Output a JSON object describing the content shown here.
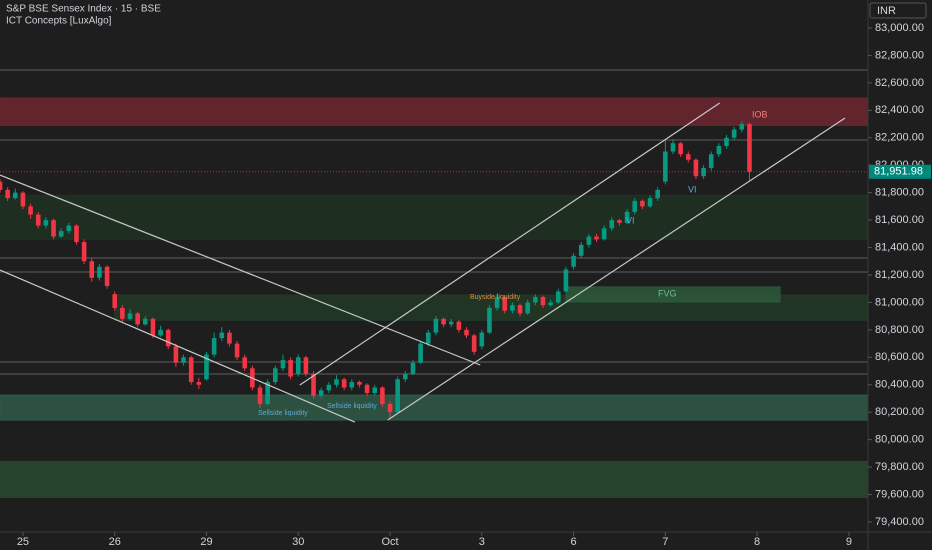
{
  "chart_data": {
    "type": "candlestick",
    "title": "S&P BSE Sensex Index · 15 · BSE",
    "subtitle": "ICT Concepts [LuxAlgo]",
    "currency": "INR",
    "up_color": "#089981",
    "down_color": "#f23645",
    "candles": [
      [
        81880,
        81900,
        81800,
        81820
      ],
      [
        81820,
        81840,
        81740,
        81760
      ],
      [
        81760,
        81830,
        81750,
        81800
      ],
      [
        81800,
        81810,
        81680,
        81700
      ],
      [
        81700,
        81720,
        81610,
        81640
      ],
      [
        81640,
        81660,
        81540,
        81560
      ],
      [
        81560,
        81620,
        81540,
        81600
      ],
      [
        81600,
        81610,
        81460,
        81480
      ],
      [
        81480,
        81540,
        81470,
        81520
      ],
      [
        81520,
        81580,
        81500,
        81560
      ],
      [
        81560,
        81570,
        81420,
        81440
      ],
      [
        81440,
        81460,
        81280,
        81300
      ],
      [
        81300,
        81320,
        81150,
        81180
      ],
      [
        81180,
        81280,
        81160,
        81260
      ],
      [
        81260,
        81270,
        81100,
        81120
      ],
      [
        81060,
        81080,
        80940,
        80960
      ],
      [
        80960,
        80980,
        80850,
        80880
      ],
      [
        80880,
        80950,
        80870,
        80920
      ],
      [
        80920,
        80930,
        80820,
        80840
      ],
      [
        80840,
        80900,
        80830,
        80880
      ],
      [
        80880,
        80890,
        80740,
        80760
      ],
      [
        80760,
        80830,
        80750,
        80800
      ],
      [
        80800,
        80810,
        80660,
        80680
      ],
      [
        80680,
        80700,
        80530,
        80560
      ],
      [
        80560,
        80620,
        80540,
        80600
      ],
      [
        80600,
        80610,
        80400,
        80420
      ],
      [
        80420,
        80450,
        80370,
        80400
      ],
      [
        80440,
        80640,
        80430,
        80620
      ],
      [
        80620,
        80780,
        80600,
        80740
      ],
      [
        80740,
        80820,
        80720,
        80780
      ],
      [
        80780,
        80800,
        80680,
        80700
      ],
      [
        80700,
        80720,
        80580,
        80600
      ],
      [
        80600,
        80620,
        80500,
        80520
      ],
      [
        80520,
        80540,
        80360,
        80380
      ],
      [
        80380,
        80400,
        80230,
        80260
      ],
      [
        80260,
        80440,
        80250,
        80420
      ],
      [
        80420,
        80540,
        80400,
        80520
      ],
      [
        80520,
        80620,
        80500,
        80580
      ],
      [
        80580,
        80600,
        80440,
        80460
      ],
      [
        80480,
        80620,
        80460,
        80600
      ],
      [
        80600,
        80610,
        80460,
        80480
      ],
      [
        80480,
        80500,
        80300,
        80320
      ],
      [
        80320,
        80380,
        80300,
        80360
      ],
      [
        80360,
        80420,
        80340,
        80400
      ],
      [
        80400,
        80470,
        80380,
        80440
      ],
      [
        80440,
        80450,
        80360,
        80380
      ],
      [
        80380,
        80440,
        80360,
        80420
      ],
      [
        80420,
        80430,
        80380,
        80400
      ],
      [
        80400,
        80410,
        80320,
        80340
      ],
      [
        80340,
        80400,
        80320,
        80380
      ],
      [
        80380,
        80390,
        80240,
        80260
      ],
      [
        80260,
        80280,
        80160,
        80200
      ],
      [
        80200,
        80460,
        80190,
        80440
      ],
      [
        80440,
        80500,
        80420,
        80480
      ],
      [
        80480,
        80580,
        80470,
        80560
      ],
      [
        80560,
        80720,
        80550,
        80700
      ],
      [
        80700,
        80800,
        80680,
        80780
      ],
      [
        80780,
        80900,
        80760,
        80880
      ],
      [
        80880,
        80890,
        80820,
        80840
      ],
      [
        80840,
        80880,
        80820,
        80860
      ],
      [
        80860,
        80870,
        80780,
        80800
      ],
      [
        80800,
        80820,
        80740,
        80760
      ],
      [
        80760,
        80770,
        80620,
        80640
      ],
      [
        80680,
        80800,
        80660,
        80780
      ],
      [
        80780,
        80980,
        80770,
        80960
      ],
      [
        80960,
        81060,
        80940,
        81040
      ],
      [
        81040,
        81050,
        80920,
        80940
      ],
      [
        80940,
        81000,
        80920,
        80980
      ],
      [
        80980,
        80990,
        80900,
        80920
      ],
      [
        80920,
        81020,
        80910,
        81000
      ],
      [
        81000,
        81060,
        80980,
        81040
      ],
      [
        81040,
        81050,
        80960,
        80980
      ],
      [
        80980,
        81020,
        80970,
        81000
      ],
      [
        81000,
        81100,
        80990,
        81080
      ],
      [
        81080,
        81260,
        81070,
        81240
      ],
      [
        81260,
        81360,
        81240,
        81340
      ],
      [
        81340,
        81440,
        81320,
        81420
      ],
      [
        81420,
        81500,
        81400,
        81480
      ],
      [
        81480,
        81500,
        81440,
        81460
      ],
      [
        81460,
        81560,
        81450,
        81540
      ],
      [
        81540,
        81620,
        81520,
        81600
      ],
      [
        81600,
        81610,
        81560,
        81580
      ],
      [
        81580,
        81680,
        81570,
        81660
      ],
      [
        81660,
        81760,
        81640,
        81740
      ],
      [
        81740,
        81750,
        81680,
        81700
      ],
      [
        81700,
        81780,
        81690,
        81760
      ],
      [
        81760,
        81840,
        81740,
        81820
      ],
      [
        81880,
        82180,
        81860,
        82100
      ],
      [
        82100,
        82190,
        82080,
        82160
      ],
      [
        82160,
        82170,
        82060,
        82080
      ],
      [
        82080,
        82100,
        82020,
        82040
      ],
      [
        82040,
        82050,
        81900,
        81920
      ],
      [
        81920,
        82000,
        81900,
        81980
      ],
      [
        81980,
        82100,
        81960,
        82080
      ],
      [
        82080,
        82160,
        82060,
        82140
      ],
      [
        82140,
        82220,
        82120,
        82200
      ],
      [
        82200,
        82280,
        82180,
        82260
      ],
      [
        82260,
        82320,
        82240,
        82300
      ],
      [
        82300,
        82310,
        81880,
        81951.98
      ]
    ],
    "last_price": {
      "value": 81951.98,
      "label": "81,951.98"
    },
    "xlim": [
      0,
      113.5
    ],
    "xticks": [
      {
        "value": 3,
        "label": "25"
      },
      {
        "value": 15,
        "label": "26"
      },
      {
        "value": 27,
        "label": "29"
      },
      {
        "value": 39,
        "label": "30"
      },
      {
        "value": 51,
        "label": "Oct"
      },
      {
        "value": 63,
        "label": "3"
      },
      {
        "value": 75,
        "label": "6"
      },
      {
        "value": 87,
        "label": "7"
      },
      {
        "value": 99,
        "label": "8"
      },
      {
        "value": 111,
        "label": "9"
      }
    ],
    "ylim": [
      79327,
      83204
    ],
    "yticks": [
      {
        "value": 79400,
        "label": "79,400.00"
      },
      {
        "value": 79600,
        "label": "79,600.00"
      },
      {
        "value": 79800,
        "label": "79,800.00"
      },
      {
        "value": 80000,
        "label": "80,000.00"
      },
      {
        "value": 80200,
        "label": "80,200.00"
      },
      {
        "value": 80400,
        "label": "80,400.00"
      },
      {
        "value": 80600,
        "label": "80,600.00"
      },
      {
        "value": 80800,
        "label": "80,800.00"
      },
      {
        "value": 81000,
        "label": "81,000.00"
      },
      {
        "value": 81200,
        "label": "81,200.00"
      },
      {
        "value": 81400,
        "label": "81,400.00"
      },
      {
        "value": 81600,
        "label": "81,600.00"
      },
      {
        "value": 81800,
        "label": "81,800.00"
      },
      {
        "value": 82000,
        "label": "82,000.00"
      },
      {
        "value": 82200,
        "label": "82,200.00"
      },
      {
        "value": 82400,
        "label": "82,400.00"
      },
      {
        "value": 82600,
        "label": "82,600.00"
      },
      {
        "value": 82800,
        "label": "82,800.00"
      },
      {
        "value": 83000,
        "label": "83,000.00"
      }
    ],
    "zones": [
      {
        "low": 82290,
        "high": 82490,
        "xrange": [
          0,
          113.5
        ],
        "color": "#6e2630"
      },
      {
        "low": 81460,
        "high": 81780,
        "xrange": [
          0,
          113.5
        ],
        "color": "#1f3323"
      },
      {
        "low": 80870,
        "high": 81054,
        "xrange": [
          15,
          113.5
        ],
        "color": "#223a27"
      },
      {
        "low": 81003,
        "high": 81113,
        "xrange": [
          74,
          102
        ],
        "color": "#2d5a3a"
      },
      {
        "low": 80143,
        "high": 80325,
        "xrange": [
          0,
          113.5
        ],
        "color": "#2f5a48"
      },
      {
        "low": 79580,
        "high": 79840,
        "xrange": [
          0,
          113.5
        ],
        "color": "#284a30"
      }
    ],
    "levels": [
      82694,
      82184,
      81324,
      81222,
      80566,
      80478
    ],
    "trendlines": [
      {
        "from": [
          0,
          81928
        ],
        "to": [
          62.8,
          80544
        ]
      },
      {
        "from": [
          0,
          81236
        ],
        "to": [
          46.4,
          80128
        ]
      },
      {
        "from": [
          39.2,
          80398
        ],
        "to": [
          94.1,
          82453
        ]
      },
      {
        "from": [
          50.7,
          80143
        ],
        "to": [
          110.5,
          82344
        ]
      }
    ],
    "annotations": [
      "Sellside liquidity",
      "Sellside liquidity",
      "Buyside liquidity",
      "FVG",
      "VI",
      "VI",
      "IOB"
    ]
  }
}
